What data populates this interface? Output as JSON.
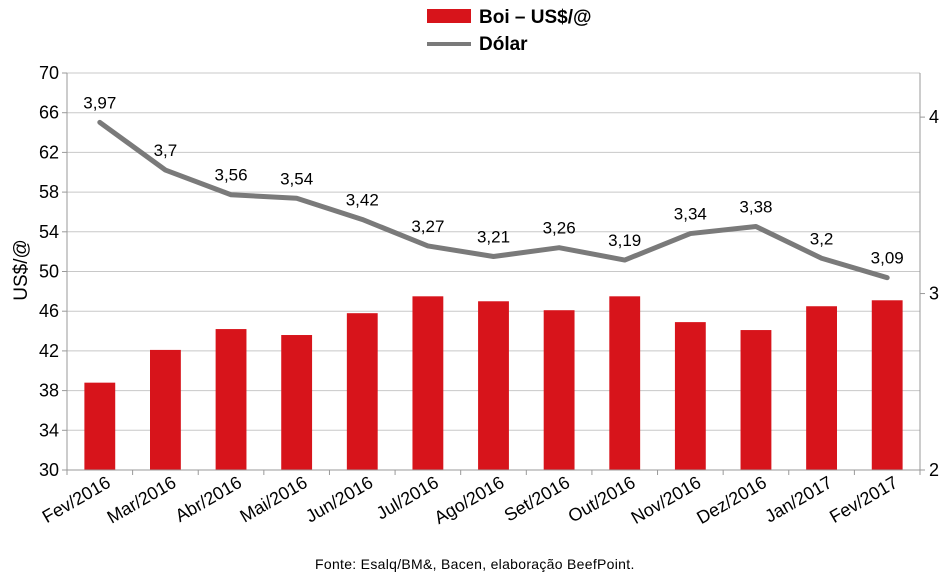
{
  "chart_data": {
    "type": "bar+line",
    "categories": [
      "Fev/2016",
      "Mar/2016",
      "Abr/2016",
      "Mai/2016",
      "Jun/2016",
      "Jul/2016",
      "Ago/2016",
      "Set/2016",
      "Out/2016",
      "Nov/2016",
      "Dez/2016",
      "Jan/2017",
      "Fev/2017"
    ],
    "series": [
      {
        "name": "Boi – US$/@",
        "type": "bar",
        "axis": "left",
        "color": "#d7141b",
        "values": [
          38.8,
          42.1,
          44.2,
          43.6,
          45.8,
          47.5,
          47.0,
          46.1,
          47.5,
          44.9,
          44.1,
          46.5,
          47.1
        ]
      },
      {
        "name": "Dólar",
        "type": "line",
        "axis": "right",
        "color": "#7a7a7a",
        "values": [
          3.97,
          3.7,
          3.56,
          3.54,
          3.42,
          3.27,
          3.21,
          3.26,
          3.19,
          3.34,
          3.38,
          3.2,
          3.09
        ],
        "labels": [
          "3,97",
          "3,7",
          "3,56",
          "3,54",
          "3,42",
          "3,27",
          "3,21",
          "3,26",
          "3,19",
          "3,34",
          "3,38",
          "3,2",
          "3,09"
        ]
      }
    ],
    "ylabel": "US$/@",
    "ylim": [
      30,
      70
    ],
    "yticks": [
      30,
      34,
      38,
      42,
      46,
      50,
      54,
      58,
      62,
      66,
      70
    ],
    "y2lim": [
      2,
      4.25
    ],
    "y2ticks": [
      2,
      3,
      4
    ],
    "grid": true,
    "legend_position": "top-center",
    "source": "Fonte:  Esalq/BM&,  Bacen,  elaboração  BeefPoint."
  }
}
